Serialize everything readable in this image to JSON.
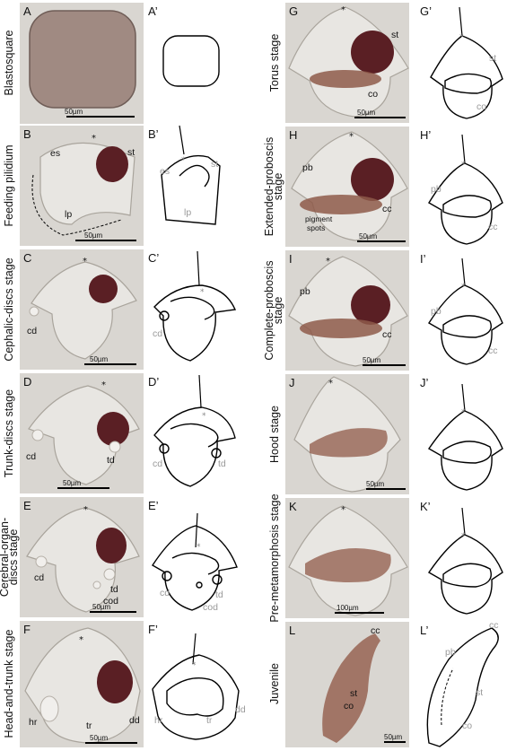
{
  "panels": {
    "A": {
      "label": "A",
      "stage": "Blastosquare",
      "scale": "50µm"
    },
    "A2": {
      "label": "A’"
    },
    "B": {
      "label": "B",
      "stage": "Feeding pilidium",
      "scale": "50µm",
      "ann": [
        "es",
        "st",
        "lp"
      ]
    },
    "B2": {
      "label": "B’",
      "ann": [
        "es",
        "st",
        "lp"
      ]
    },
    "C": {
      "label": "C",
      "stage": "Cephalic-discs stage",
      "scale": "50µm",
      "ann": [
        "cd"
      ]
    },
    "C2": {
      "label": "C’",
      "ann": [
        "cd"
      ]
    },
    "D": {
      "label": "D",
      "stage": "Trunk-discs stage",
      "scale": "50µm",
      "ann": [
        "cd",
        "td"
      ]
    },
    "D2": {
      "label": "D’",
      "ann": [
        "cd",
        "td"
      ]
    },
    "E": {
      "label": "E",
      "stage_lines": [
        "Cerebral-organ-",
        "discs stage"
      ],
      "scale": "50µm",
      "ann": [
        "cd",
        "td",
        "cod"
      ]
    },
    "E2": {
      "label": "E’",
      "ann": [
        "cd",
        "td",
        "cod"
      ]
    },
    "F": {
      "label": "F",
      "stage": "Head-and-trunk stage",
      "scale": "50µm",
      "ann": [
        "hr",
        "tr",
        "dd"
      ]
    },
    "F2": {
      "label": "F’",
      "ann": [
        "hr",
        "tr",
        "dd"
      ]
    },
    "G": {
      "label": "G",
      "stage": "Torus stage",
      "scale": "50µm",
      "ann": [
        "st",
        "co"
      ]
    },
    "G2": {
      "label": "G’",
      "ann": [
        "st",
        "co"
      ]
    },
    "H": {
      "label": "H",
      "stage_lines": [
        "Extended-proboscis",
        "stage"
      ],
      "scale": "50µm",
      "ann": [
        "pb",
        "cc"
      ],
      "note_lines": [
        "pigment",
        "spots"
      ]
    },
    "H2": {
      "label": "H’",
      "ann": [
        "pb",
        "cc"
      ]
    },
    "I": {
      "label": "I",
      "stage_lines": [
        "Complete-proboscis",
        "stage"
      ],
      "scale": "50µm",
      "ann": [
        "pb",
        "cc"
      ]
    },
    "I2": {
      "label": "I’",
      "ann": [
        "pb",
        "cc"
      ]
    },
    "J": {
      "label": "J",
      "stage": "Hood stage",
      "scale": "50µm"
    },
    "J2": {
      "label": "J’"
    },
    "K": {
      "label": "K",
      "stage": "Pre-metamorphosis stage",
      "scale": "100µm"
    },
    "K2": {
      "label": "K’"
    },
    "L": {
      "label": "L",
      "stage": "Juvenile",
      "scale": "50µm",
      "ann": [
        "cc",
        "st",
        "co"
      ]
    },
    "L2": {
      "label": "L’",
      "ann": [
        "cc",
        "pb",
        "st",
        "co"
      ]
    }
  },
  "marker": "*",
  "colors": {
    "photo_background": "#d9d6d1",
    "gut": "#5a1f24",
    "sketch_line": "#000000",
    "sketch_label": "#9a9a9a"
  }
}
